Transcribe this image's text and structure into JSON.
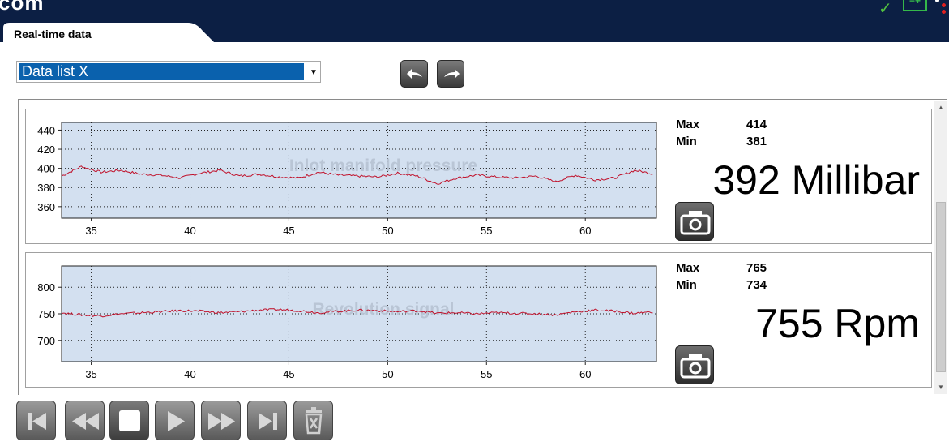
{
  "header": {
    "logo_text": "com",
    "status_icons": [
      "checkmark-icon",
      "battery-icon",
      "dots-icon"
    ]
  },
  "tab": {
    "label": "Real-time data"
  },
  "toolbar": {
    "datalist_selected": "Data list X",
    "nav_buttons": [
      "undo-arrow-icon",
      "redo-arrow-icon"
    ]
  },
  "panels": [
    {
      "title": "Inlot manifold pressure",
      "max_label": "Max",
      "max_value": "414",
      "min_label": "Min",
      "min_value": "381",
      "current_value": "392 Millibar",
      "line_color": "#c0102a",
      "chart_data": {
        "type": "line",
        "title": "Inlot manifold pressure",
        "x_ticks": [
          35,
          40,
          45,
          50,
          55,
          60
        ],
        "y_ticks": [
          360,
          380,
          400,
          420,
          440
        ],
        "xlim": [
          33.5,
          63.6
        ],
        "ylim": [
          348,
          448
        ],
        "grid": true,
        "series": [
          {
            "x": [
              33.5,
              34.5,
              35.5,
              36.5,
              37.5,
              38.5,
              39.5,
              40.5,
              41.5,
              42.5,
              43.5,
              44.5,
              45.5,
              46.5,
              47.5,
              48.5,
              49.5,
              50.5,
              51.5,
              52.5,
              53.5,
              54.5,
              55.5,
              56.5,
              57.5,
              58.5,
              59.5,
              60.5,
              61.5,
              62.5,
              63.5
            ],
            "values": [
              392,
              402,
              396,
              398,
              394,
              393,
              390,
              395,
              398,
              392,
              394,
              391,
              390,
              396,
              393,
              392,
              391,
              395,
              392,
              384,
              390,
              393,
              391,
              390,
              392,
              386,
              393,
              388,
              390,
              398,
              394
            ]
          }
        ]
      }
    },
    {
      "title": "Revolution signal",
      "max_label": "Max",
      "max_value": "765",
      "min_label": "Min",
      "min_value": "734",
      "current_value": "755 Rpm",
      "line_color": "#c0102a",
      "chart_data": {
        "type": "line",
        "title": "Revolution signal",
        "x_ticks": [
          35,
          40,
          45,
          50,
          55,
          60
        ],
        "y_ticks": [
          700,
          750,
          800
        ],
        "xlim": [
          33.5,
          63.6
        ],
        "ylim": [
          660,
          840
        ],
        "grid": true,
        "series": [
          {
            "x": [
              33.5,
              34.5,
              35.5,
              36.5,
              37.5,
              38.5,
              39.5,
              40.5,
              41.5,
              42.5,
              43.5,
              44.5,
              45.5,
              46.5,
              47.5,
              48.5,
              49.5,
              50.5,
              51.5,
              52.5,
              53.5,
              54.5,
              55.5,
              56.5,
              57.5,
              58.5,
              59.5,
              60.5,
              61.5,
              62.5,
              63.5
            ],
            "values": [
              752,
              748,
              746,
              750,
              752,
              754,
              756,
              755,
              752,
              754,
              757,
              758,
              756,
              752,
              755,
              757,
              756,
              754,
              756,
              751,
              752,
              750,
              752,
              751,
              750,
              748,
              754,
              757,
              755,
              751,
              754
            ]
          }
        ]
      }
    }
  ],
  "playback_controls": [
    "skip-to-start-icon",
    "rewind-icon",
    "stop-icon",
    "play-icon",
    "fast-forward-icon",
    "skip-to-end-icon",
    "trash-icon"
  ]
}
